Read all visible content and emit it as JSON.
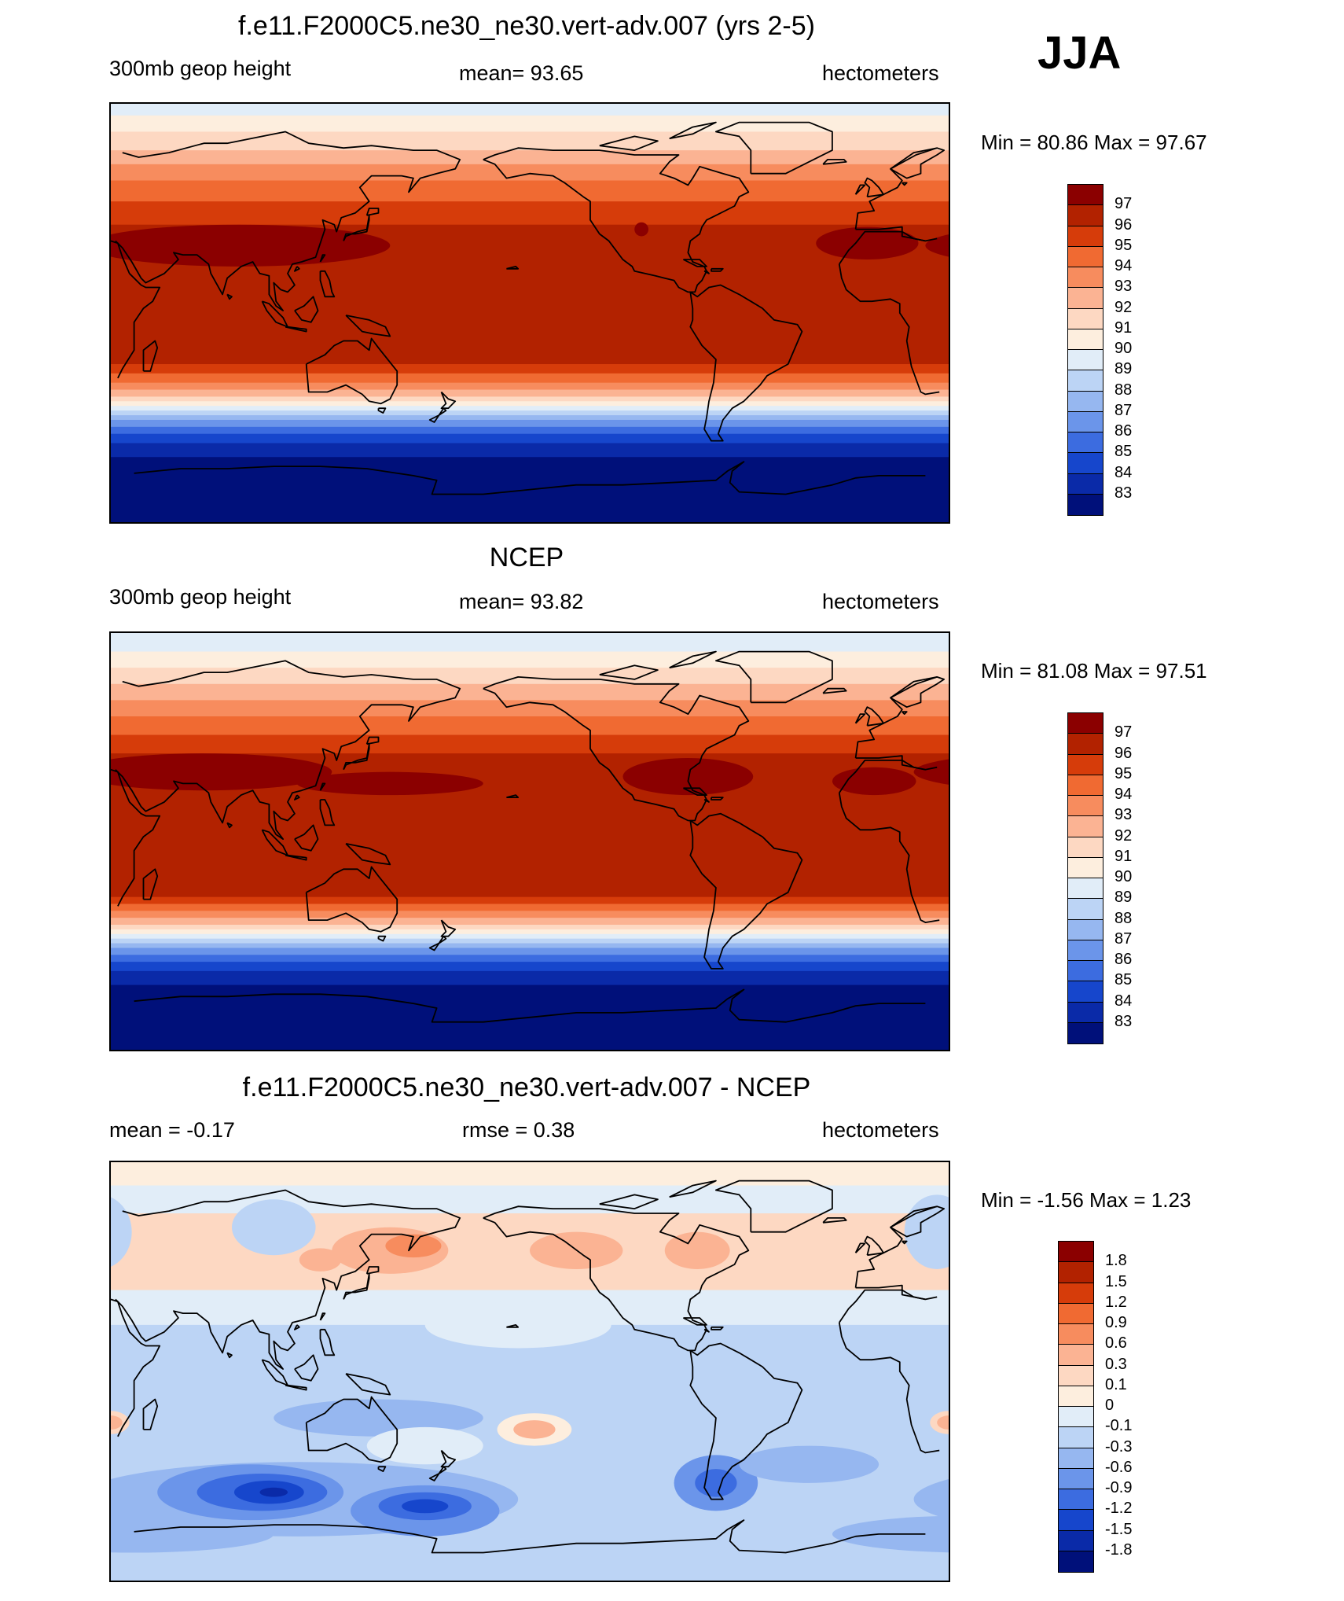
{
  "season": "JJA",
  "panels": [
    {
      "id": "model",
      "title": "f.e11.F2000C5.ne30_ne30.vert-adv.007 (yrs 2-5)",
      "left_label": "300mb geop height",
      "center_label": "mean=  93.65",
      "right_label": "hectometers",
      "minmax": "Min =  80.86 Max =  97.67",
      "colorbar": {
        "labels": [
          "97",
          "96",
          "95",
          "94",
          "93",
          "92",
          "91",
          "90",
          "89",
          "88",
          "87",
          "86",
          "85",
          "84",
          "83"
        ],
        "colors": [
          "#8b0000",
          "#b22200",
          "#d63c0a",
          "#f06a32",
          "#f78c5e",
          "#fbb393",
          "#fdd8c2",
          "#fdeede",
          "#e1edf8",
          "#bcd4f5",
          "#96b7f0",
          "#6b95ea",
          "#3c6ce0",
          "#1646cc",
          "#0a2aa8",
          "#00107a"
        ]
      },
      "bands": [
        {
          "lat_s": 90,
          "lat_n": 85,
          "color": "#e1edf8"
        },
        {
          "lat_s": 85,
          "lat_n": 78,
          "color": "#fdeede"
        },
        {
          "lat_s": 78,
          "lat_n": 70,
          "color": "#fdd8c2"
        },
        {
          "lat_s": 70,
          "lat_n": 64,
          "color": "#fbb393"
        },
        {
          "lat_s": 64,
          "lat_n": 57,
          "color": "#f78c5e"
        },
        {
          "lat_s": 57,
          "lat_n": 48,
          "color": "#f06a32"
        },
        {
          "lat_s": 48,
          "lat_n": 38,
          "color": "#d63c0a"
        },
        {
          "lat_s": 38,
          "lat_n": -22,
          "color": "#b22200"
        },
        {
          "lat_s": -22,
          "lat_n": -26,
          "color": "#d63c0a"
        },
        {
          "lat_s": -26,
          "lat_n": -30,
          "color": "#f06a32"
        },
        {
          "lat_s": -30,
          "lat_n": -33,
          "color": "#f78c5e"
        },
        {
          "lat_s": -33,
          "lat_n": -36,
          "color": "#fbb393"
        },
        {
          "lat_s": -36,
          "lat_n": -38,
          "color": "#fdd8c2"
        },
        {
          "lat_s": -38,
          "lat_n": -40,
          "color": "#fdeede"
        },
        {
          "lat_s": -40,
          "lat_n": -42,
          "color": "#e1edf8"
        },
        {
          "lat_s": -42,
          "lat_n": -44,
          "color": "#bcd4f5"
        },
        {
          "lat_s": -44,
          "lat_n": -46,
          "color": "#96b7f0"
        },
        {
          "lat_s": -46,
          "lat_n": -49,
          "color": "#6b95ea"
        },
        {
          "lat_s": -49,
          "lat_n": -52,
          "color": "#3c6ce0"
        },
        {
          "lat_s": -52,
          "lat_n": -56,
          "color": "#1646cc"
        },
        {
          "lat_s": -56,
          "lat_n": -62,
          "color": "#0a2aa8"
        },
        {
          "lat_s": -62,
          "lat_n": -90,
          "color": "#00107a"
        }
      ],
      "blobs": [
        {
          "lon": 85,
          "lat": 29,
          "rlon": 65,
          "rlat": 9,
          "color": "#8b0000"
        },
        {
          "lon": 355,
          "lat": 30,
          "rlon": 22,
          "rlat": 7,
          "color": "#8b0000"
        },
        {
          "lon": 258,
          "lat": 36,
          "rlon": 3,
          "rlat": 3,
          "color": "#8b0000"
        }
      ]
    },
    {
      "id": "obs",
      "title": "NCEP",
      "left_label": "300mb geop height",
      "center_label": "mean=  93.82",
      "right_label": "hectometers",
      "minmax": "Min =  81.08 Max =  97.51",
      "colorbar": {
        "labels": [
          "97",
          "96",
          "95",
          "94",
          "93",
          "92",
          "91",
          "90",
          "89",
          "88",
          "87",
          "86",
          "85",
          "84",
          "83"
        ],
        "colors": [
          "#8b0000",
          "#b22200",
          "#d63c0a",
          "#f06a32",
          "#f78c5e",
          "#fbb393",
          "#fdd8c2",
          "#fdeede",
          "#e1edf8",
          "#bcd4f5",
          "#96b7f0",
          "#6b95ea",
          "#3c6ce0",
          "#1646cc",
          "#0a2aa8",
          "#00107a"
        ]
      },
      "bands": [
        {
          "lat_s": 90,
          "lat_n": 82,
          "color": "#e1edf8"
        },
        {
          "lat_s": 82,
          "lat_n": 75,
          "color": "#fdeede"
        },
        {
          "lat_s": 75,
          "lat_n": 68,
          "color": "#fdd8c2"
        },
        {
          "lat_s": 68,
          "lat_n": 61,
          "color": "#fbb393"
        },
        {
          "lat_s": 61,
          "lat_n": 54,
          "color": "#f78c5e"
        },
        {
          "lat_s": 54,
          "lat_n": 46,
          "color": "#f06a32"
        },
        {
          "lat_s": 46,
          "lat_n": 38,
          "color": "#d63c0a"
        },
        {
          "lat_s": 38,
          "lat_n": -24,
          "color": "#b22200"
        },
        {
          "lat_s": -24,
          "lat_n": -27,
          "color": "#d63c0a"
        },
        {
          "lat_s": -27,
          "lat_n": -30,
          "color": "#f06a32"
        },
        {
          "lat_s": -30,
          "lat_n": -33,
          "color": "#f78c5e"
        },
        {
          "lat_s": -33,
          "lat_n": -36,
          "color": "#fbb393"
        },
        {
          "lat_s": -36,
          "lat_n": -38,
          "color": "#fdd8c2"
        },
        {
          "lat_s": -38,
          "lat_n": -40,
          "color": "#fdeede"
        },
        {
          "lat_s": -40,
          "lat_n": -42,
          "color": "#e1edf8"
        },
        {
          "lat_s": -42,
          "lat_n": -44,
          "color": "#bcd4f5"
        },
        {
          "lat_s": -44,
          "lat_n": -46,
          "color": "#96b7f0"
        },
        {
          "lat_s": -46,
          "lat_n": -49,
          "color": "#6b95ea"
        },
        {
          "lat_s": -49,
          "lat_n": -52,
          "color": "#3c6ce0"
        },
        {
          "lat_s": -52,
          "lat_n": -56,
          "color": "#1646cc"
        },
        {
          "lat_s": -56,
          "lat_n": -62,
          "color": "#0a2aa8"
        },
        {
          "lat_s": -62,
          "lat_n": -90,
          "color": "#00107a"
        }
      ],
      "blobs": [
        {
          "lon": 70,
          "lat": 30,
          "rlon": 55,
          "rlat": 8,
          "color": "#8b0000"
        },
        {
          "lon": 150,
          "lat": 25,
          "rlon": 40,
          "rlat": 5,
          "color": "#8b0000"
        },
        {
          "lon": 278,
          "lat": 28,
          "rlon": 28,
          "rlat": 8,
          "color": "#8b0000"
        },
        {
          "lon": 358,
          "lat": 26,
          "rlon": 18,
          "rlat": 6,
          "color": "#8b0000"
        }
      ]
    },
    {
      "id": "diff",
      "title": "f.e11.F2000C5.ne30_ne30.vert-adv.007 - NCEP",
      "left_label": "mean =  -0.17",
      "center_label": "rmse =   0.38",
      "right_label": "hectometers",
      "minmax": "Min =  -1.56 Max =   1.23",
      "colorbar": {
        "labels": [
          "1.8",
          "1.5",
          "1.2",
          "0.9",
          "0.6",
          "0.3",
          "0.1",
          "0",
          "-0.1",
          "-0.3",
          "-0.6",
          "-0.9",
          "-1.2",
          "-1.5",
          "-1.8"
        ],
        "colors": [
          "#8b0000",
          "#b22200",
          "#d63c0a",
          "#f06a32",
          "#f78c5e",
          "#fbb393",
          "#fdd8c2",
          "#fdeede",
          "#e1edf8",
          "#bcd4f5",
          "#96b7f0",
          "#6b95ea",
          "#3c6ce0",
          "#1646cc",
          "#0a2aa8",
          "#00107a"
        ]
      },
      "bands": [
        {
          "lat_s": 90,
          "lat_n": 80,
          "color": "#fdeede"
        },
        {
          "lat_s": 80,
          "lat_n": 68,
          "color": "#e1edf8"
        },
        {
          "lat_s": 68,
          "lat_n": 35,
          "color": "#fdd8c2"
        },
        {
          "lat_s": 35,
          "lat_n": 20,
          "color": "#e1edf8"
        },
        {
          "lat_s": 20,
          "lat_n": -90,
          "color": "#bcd4f5"
        }
      ],
      "blobs": [
        {
          "lon": 25,
          "lat": 60,
          "rlon": 14,
          "rlat": 16,
          "color": "#bcd4f5"
        },
        {
          "lon": 100,
          "lat": 62,
          "rlon": 18,
          "rlat": 12,
          "color": "#bcd4f5"
        },
        {
          "lon": 150,
          "lat": 52,
          "rlon": 25,
          "rlat": 10,
          "color": "#fbb393"
        },
        {
          "lon": 160,
          "lat": 54,
          "rlon": 12,
          "rlat": 5,
          "color": "#f78c5e"
        },
        {
          "lon": 120,
          "lat": 48,
          "rlon": 9,
          "rlat": 5,
          "color": "#fbb393"
        },
        {
          "lon": 230,
          "lat": 52,
          "rlon": 20,
          "rlat": 8,
          "color": "#fbb393"
        },
        {
          "lon": 282,
          "lat": 52,
          "rlon": 14,
          "rlat": 8,
          "color": "#fbb393"
        },
        {
          "lon": 205,
          "lat": 20,
          "rlon": 40,
          "rlat": 10,
          "color": "#e1edf8"
        },
        {
          "lon": 30,
          "lat": -22,
          "rlon": 8,
          "rlat": 5,
          "color": "#fdd8c2"
        },
        {
          "lon": 30,
          "lat": -22,
          "rlon": 5,
          "rlat": 3,
          "color": "#fbb393"
        },
        {
          "lon": 145,
          "lat": -20,
          "rlon": 45,
          "rlat": 8,
          "color": "#96b7f0"
        },
        {
          "lon": 110,
          "lat": -55,
          "rlon": 95,
          "rlat": 16,
          "color": "#96b7f0"
        },
        {
          "lon": 165,
          "lat": -32,
          "rlon": 25,
          "rlat": 8,
          "color": "#e1edf8"
        },
        {
          "lon": 212,
          "lat": -25,
          "rlon": 16,
          "rlat": 7,
          "color": "#fdeede"
        },
        {
          "lon": 212,
          "lat": -25,
          "rlon": 9,
          "rlat": 4,
          "color": "#fbb393"
        },
        {
          "lon": 90,
          "lat": -52,
          "rlon": 40,
          "rlat": 12,
          "color": "#6b95ea"
        },
        {
          "lon": 95,
          "lat": -52,
          "rlon": 28,
          "rlat": 8,
          "color": "#3c6ce0"
        },
        {
          "lon": 98,
          "lat": -52,
          "rlon": 15,
          "rlat": 5,
          "color": "#1646cc"
        },
        {
          "lon": 100,
          "lat": -52,
          "rlon": 6,
          "rlat": 2,
          "color": "#0a2aa8"
        },
        {
          "lon": 165,
          "lat": -60,
          "rlon": 32,
          "rlat": 11,
          "color": "#6b95ea"
        },
        {
          "lon": 165,
          "lat": -58,
          "rlon": 20,
          "rlat": 6,
          "color": "#3c6ce0"
        },
        {
          "lon": 165,
          "lat": -58,
          "rlon": 10,
          "rlat": 3,
          "color": "#1646cc"
        },
        {
          "lon": 290,
          "lat": -48,
          "rlon": 18,
          "rlat": 12,
          "color": "#6b95ea"
        },
        {
          "lon": 290,
          "lat": -48,
          "rlon": 9,
          "rlat": 6,
          "color": "#3c6ce0"
        },
        {
          "lon": 330,
          "lat": -40,
          "rlon": 30,
          "rlat": 8,
          "color": "#96b7f0"
        },
        {
          "lon": 40,
          "lat": -70,
          "rlon": 60,
          "rlat": 8,
          "color": "#96b7f0"
        }
      ]
    }
  ]
}
